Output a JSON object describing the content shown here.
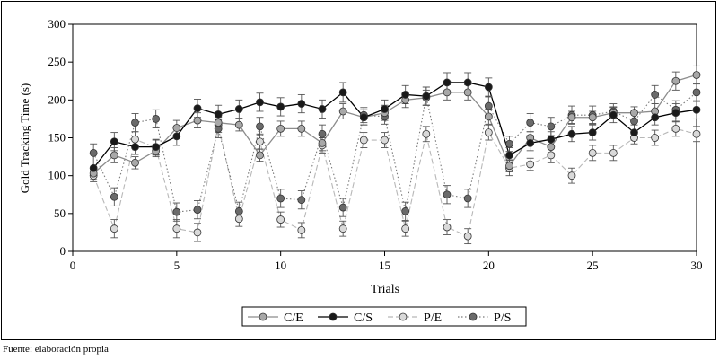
{
  "chart_data": {
    "type": "line",
    "xlabel": "Trials",
    "ylabel": "Gold Tracking Time (s)",
    "xlim": [
      0,
      30
    ],
    "ylim": [
      0,
      300
    ],
    "xticks": [
      0,
      5,
      10,
      15,
      20,
      25,
      30
    ],
    "yticks": [
      0,
      50,
      100,
      150,
      200,
      250,
      300
    ],
    "grid": false,
    "legend_position": "bottom-center",
    "x": [
      1,
      2,
      3,
      4,
      5,
      6,
      7,
      8,
      9,
      10,
      11,
      12,
      13,
      14,
      15,
      16,
      17,
      18,
      19,
      20,
      21,
      22,
      23,
      24,
      25,
      26,
      27,
      28,
      29,
      30
    ],
    "series": [
      {
        "name": "C/E",
        "style": "solid",
        "line_color": "#8c8c8c",
        "marker_fill": "#a8a8a8",
        "values": [
          103,
          127,
          117,
          133,
          163,
          173,
          170,
          167,
          127,
          162,
          162,
          143,
          185,
          177,
          183,
          200,
          203,
          210,
          210,
          178,
          113,
          150,
          138,
          177,
          177,
          183,
          183,
          185,
          225,
          233
        ],
        "errors": [
          8,
          10,
          8,
          8,
          10,
          10,
          8,
          8,
          8,
          10,
          10,
          10,
          10,
          10,
          10,
          10,
          10,
          10,
          10,
          10,
          8,
          8,
          8,
          8,
          8,
          8,
          8,
          10,
          12,
          12
        ]
      },
      {
        "name": "C/S",
        "style": "solid",
        "line_color": "#000000",
        "marker_fill": "#1a1a1a",
        "values": [
          110,
          145,
          138,
          138,
          152,
          189,
          181,
          188,
          197,
          191,
          195,
          188,
          210,
          177,
          188,
          207,
          205,
          223,
          223,
          217,
          127,
          143,
          148,
          155,
          157,
          180,
          157,
          177,
          183,
          187
        ],
        "errors": [
          8,
          12,
          10,
          10,
          12,
          12,
          12,
          12,
          12,
          12,
          12,
          12,
          13,
          10,
          12,
          12,
          12,
          13,
          13,
          12,
          10,
          10,
          10,
          10,
          10,
          10,
          10,
          10,
          12,
          12
        ]
      },
      {
        "name": "P/E",
        "style": "dashed",
        "line_color": "#b8b8b8",
        "marker_fill": "#d9d9d9",
        "values": [
          100,
          30,
          148,
          137,
          30,
          25,
          167,
          43,
          145,
          42,
          28,
          140,
          30,
          147,
          147,
          30,
          155,
          32,
          20,
          157,
          110,
          115,
          127,
          100,
          130,
          130,
          150,
          150,
          162,
          155
        ],
        "errors": [
          8,
          12,
          10,
          10,
          12,
          12,
          10,
          10,
          10,
          10,
          10,
          10,
          10,
          10,
          10,
          10,
          10,
          10,
          10,
          10,
          10,
          8,
          10,
          10,
          10,
          10,
          8,
          10,
          10,
          10
        ]
      },
      {
        "name": "P/S",
        "style": "dotted",
        "line_color": "#7a7a7a",
        "marker_fill": "#6a6a6a",
        "values": [
          130,
          72,
          170,
          175,
          52,
          55,
          162,
          53,
          165,
          70,
          68,
          155,
          58,
          180,
          178,
          53,
          205,
          75,
          70,
          192,
          142,
          170,
          165,
          180,
          180,
          185,
          172,
          207,
          187,
          210
        ],
        "errors": [
          12,
          12,
          12,
          12,
          12,
          12,
          12,
          12,
          12,
          12,
          12,
          12,
          12,
          10,
          10,
          12,
          12,
          12,
          12,
          12,
          10,
          12,
          12,
          12,
          12,
          10,
          12,
          12,
          12,
          12
        ]
      }
    ]
  },
  "source_note": "Fuente: elaboración propia"
}
